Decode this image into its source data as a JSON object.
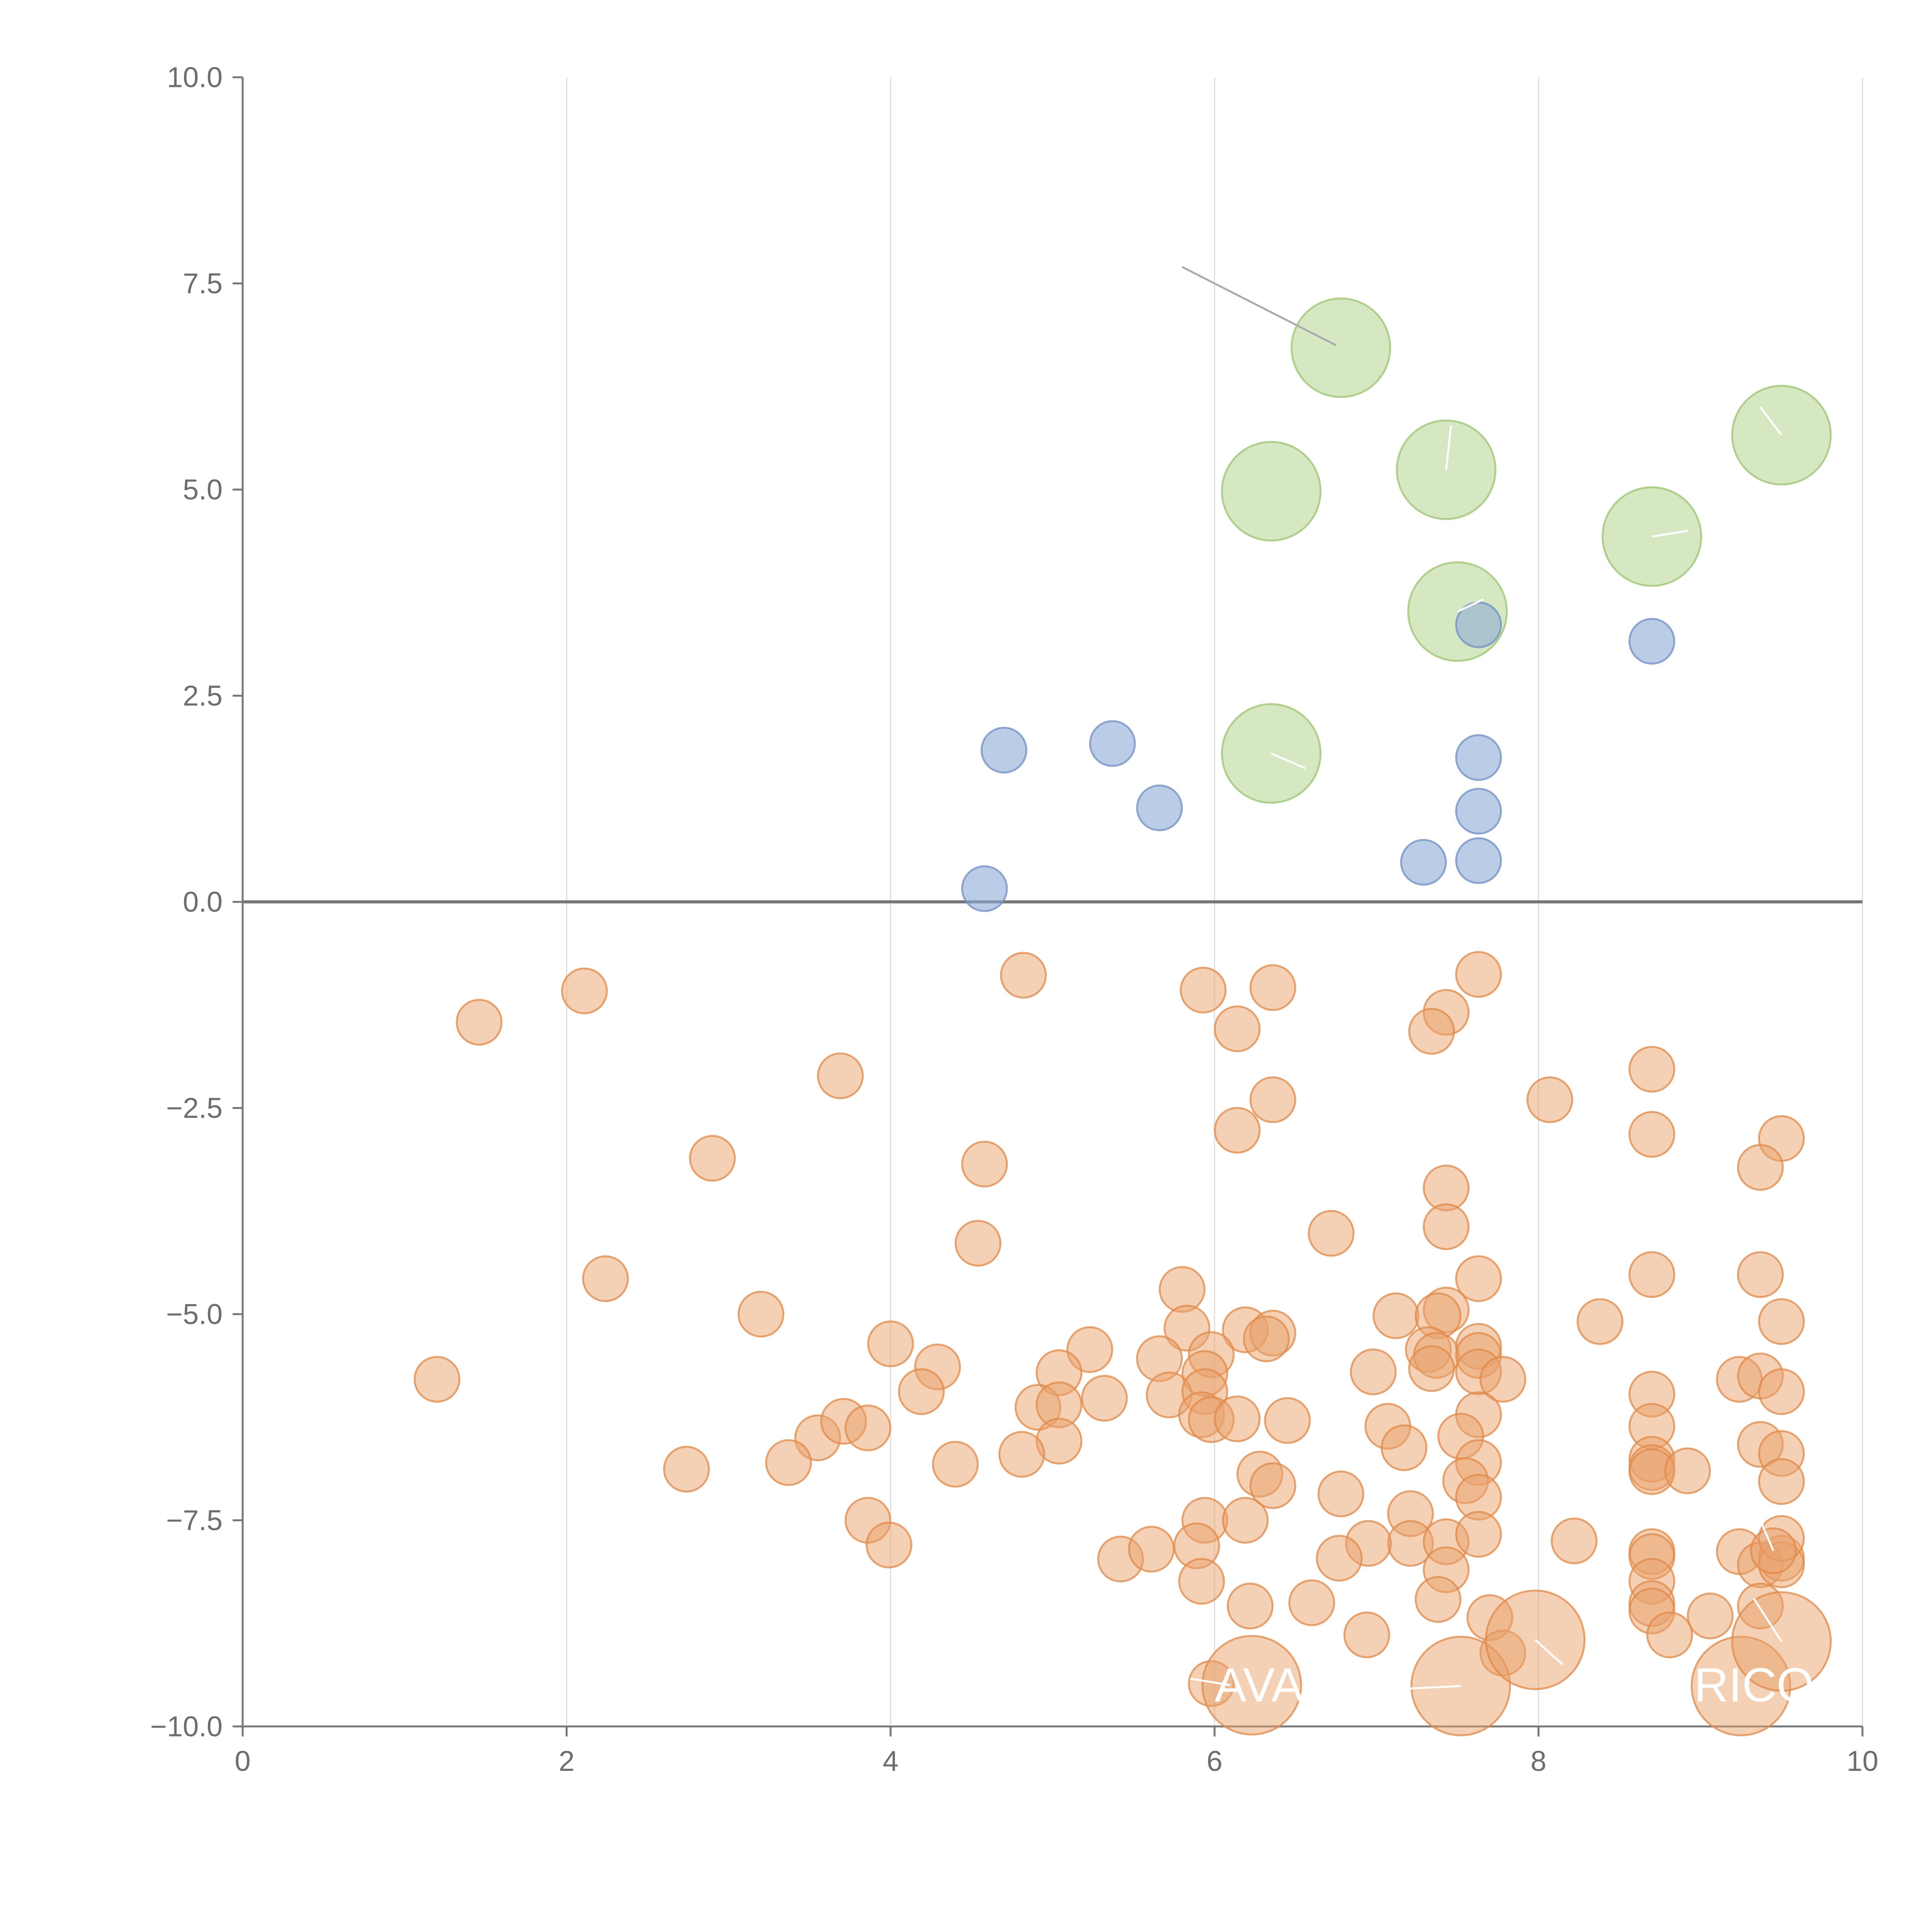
{
  "colors": {
    "axis": "#777777",
    "zero_line": "#777777",
    "grid": "#dddddd",
    "tick_text": "#6e6e6e",
    "leader_line": "#aaaaaa",
    "label_text": "#ffffff"
  },
  "chart_data": {
    "type": "scatter",
    "title": "",
    "xlabel": "",
    "ylabel": "",
    "xlim": [
      0,
      10
    ],
    "ylim": [
      -10,
      10
    ],
    "grid": {
      "x": true,
      "y": false
    },
    "zero_line": true,
    "x_ticks": [
      {
        "value": 0,
        "label": "0"
      },
      {
        "value": 2,
        "label": "2"
      },
      {
        "value": 4,
        "label": "4"
      },
      {
        "value": 6,
        "label": "6"
      },
      {
        "value": 8,
        "label": "8"
      },
      {
        "value": 10,
        "label": "10"
      }
    ],
    "y_ticks": [
      {
        "value": 10,
        "label": "10.0"
      },
      {
        "value": 7.5,
        "label": "7.5"
      },
      {
        "value": 5,
        "label": "5.0"
      },
      {
        "value": 2.5,
        "label": "2.5"
      },
      {
        "value": 0,
        "label": "0.0"
      },
      {
        "value": -2.5,
        "label": "−2.5"
      },
      {
        "value": -5,
        "label": "−5.0"
      },
      {
        "value": -7.5,
        "label": "−7.5"
      },
      {
        "value": -10,
        "label": "−10.0"
      }
    ],
    "series": [
      {
        "name": "green",
        "color": "#b5d58e",
        "stroke": "#9cc46d",
        "opacity": 0.55,
        "size": 2.2,
        "points": [
          [
            6.78,
            6.72
          ],
          [
            6.35,
            4.98
          ],
          [
            7.43,
            5.24
          ],
          [
            9.5,
            5.66
          ],
          [
            8.7,
            4.43
          ],
          [
            7.5,
            3.52
          ],
          [
            6.35,
            1.8
          ]
        ]
      },
      {
        "name": "blue",
        "color": "#8eabd6",
        "stroke": "#6f8fc4",
        "opacity": 0.6,
        "size": 1,
        "points": [
          [
            7.63,
            3.36
          ],
          [
            8.7,
            3.16
          ],
          [
            4.7,
            1.84
          ],
          [
            5.37,
            1.92
          ],
          [
            5.66,
            1.14
          ],
          [
            7.63,
            1.75
          ],
          [
            7.63,
            1.1
          ],
          [
            7.29,
            0.48
          ],
          [
            7.63,
            0.5
          ],
          [
            4.58,
            0.16
          ]
        ]
      },
      {
        "name": "orange",
        "color": "#e9a26b",
        "stroke": "#e08a47",
        "opacity": 0.5,
        "size": 1,
        "points": [
          [
            1.46,
            -1.46
          ],
          [
            2.11,
            -1.08
          ],
          [
            4.82,
            -0.89
          ],
          [
            5.93,
            -1.07
          ],
          [
            6.36,
            -1.04
          ],
          [
            7.63,
            -0.88
          ],
          [
            7.43,
            -1.34
          ],
          [
            7.34,
            -1.57
          ],
          [
            6.14,
            -1.54
          ],
          [
            3.69,
            -2.11
          ],
          [
            8.7,
            -2.03
          ],
          [
            6.36,
            -2.4
          ],
          [
            8.07,
            -2.4
          ],
          [
            6.14,
            -2.77
          ],
          [
            8.7,
            -2.82
          ],
          [
            9.5,
            -2.87
          ],
          [
            2.9,
            -3.11
          ],
          [
            4.58,
            -3.18
          ],
          [
            9.37,
            -3.22
          ],
          [
            7.43,
            -3.47
          ],
          [
            7.43,
            -3.94
          ],
          [
            6.72,
            -4.02
          ],
          [
            4.54,
            -4.14
          ],
          [
            2.24,
            -4.57
          ],
          [
            7.63,
            -4.57
          ],
          [
            8.7,
            -4.52
          ],
          [
            9.37,
            -4.52
          ],
          [
            5.8,
            -4.7
          ],
          [
            3.2,
            -5.0
          ],
          [
            7.12,
            -5.02
          ],
          [
            7.43,
            -4.95
          ],
          [
            7.38,
            -5.02
          ],
          [
            8.38,
            -5.09
          ],
          [
            9.5,
            -5.09
          ],
          [
            6.19,
            -5.19
          ],
          [
            6.36,
            -5.23
          ],
          [
            6.32,
            -5.3
          ],
          [
            5.83,
            -5.17
          ],
          [
            4.0,
            -5.36
          ],
          [
            5.23,
            -5.43
          ],
          [
            5.98,
            -5.49
          ],
          [
            7.32,
            -5.43
          ],
          [
            7.37,
            -5.5
          ],
          [
            7.63,
            -5.39
          ],
          [
            7.63,
            -5.5
          ],
          [
            1.2,
            -5.79
          ],
          [
            4.29,
            -5.64
          ],
          [
            5.04,
            -5.71
          ],
          [
            5.66,
            -5.54
          ],
          [
            5.94,
            -5.72
          ],
          [
            6.98,
            -5.7
          ],
          [
            7.34,
            -5.66
          ],
          [
            7.63,
            -5.7
          ],
          [
            7.78,
            -5.79
          ],
          [
            9.24,
            -5.79
          ],
          [
            9.37,
            -5.75
          ],
          [
            4.19,
            -5.94
          ],
          [
            5.72,
            -5.98
          ],
          [
            5.94,
            -5.94
          ],
          [
            8.7,
            -5.97
          ],
          [
            9.5,
            -5.94
          ],
          [
            4.91,
            -6.13
          ],
          [
            5.04,
            -6.1
          ],
          [
            5.32,
            -6.02
          ],
          [
            5.92,
            -6.22
          ],
          [
            5.98,
            -6.28
          ],
          [
            6.14,
            -6.27
          ],
          [
            6.45,
            -6.29
          ],
          [
            7.63,
            -6.22
          ],
          [
            3.55,
            -6.5
          ],
          [
            3.71,
            -6.3
          ],
          [
            3.86,
            -6.38
          ],
          [
            7.07,
            -6.36
          ],
          [
            7.52,
            -6.48
          ],
          [
            8.7,
            -6.36
          ],
          [
            9.37,
            -6.58
          ],
          [
            5.04,
            -6.54
          ],
          [
            7.17,
            -6.62
          ],
          [
            2.74,
            -6.88
          ],
          [
            3.37,
            -6.8
          ],
          [
            4.4,
            -6.82
          ],
          [
            4.81,
            -6.7
          ],
          [
            7.63,
            -6.8
          ],
          [
            8.7,
            -6.76
          ],
          [
            8.7,
            -6.86
          ],
          [
            8.7,
            -6.91
          ],
          [
            8.92,
            -6.9
          ],
          [
            9.5,
            -6.69
          ],
          [
            6.28,
            -6.94
          ],
          [
            6.36,
            -7.08
          ],
          [
            7.55,
            -7.02
          ],
          [
            9.5,
            -7.03
          ],
          [
            6.78,
            -7.18
          ],
          [
            7.63,
            -7.22
          ],
          [
            3.86,
            -7.5
          ],
          [
            5.94,
            -7.5
          ],
          [
            6.19,
            -7.5
          ],
          [
            7.21,
            -7.42
          ],
          [
            3.99,
            -7.8
          ],
          [
            5.89,
            -7.81
          ],
          [
            7.21,
            -7.78
          ],
          [
            7.43,
            -7.76
          ],
          [
            7.63,
            -7.67
          ],
          [
            8.22,
            -7.75
          ],
          [
            6.95,
            -7.78
          ],
          [
            5.42,
            -7.97
          ],
          [
            5.61,
            -7.85
          ],
          [
            6.77,
            -7.96
          ],
          [
            8.7,
            -7.88
          ],
          [
            8.7,
            -7.94
          ],
          [
            9.24,
            -7.88
          ],
          [
            9.37,
            -8.04
          ],
          [
            9.5,
            -7.96
          ],
          [
            9.5,
            -8.04
          ],
          [
            9.5,
            -7.72
          ],
          [
            9.45,
            -7.87
          ],
          [
            5.92,
            -8.24
          ],
          [
            7.43,
            -8.1
          ],
          [
            8.7,
            -8.24
          ],
          [
            7.38,
            -8.46
          ],
          [
            6.22,
            -8.54
          ],
          [
            6.6,
            -8.5
          ],
          [
            8.7,
            -8.51
          ],
          [
            8.7,
            -8.6
          ],
          [
            9.37,
            -8.54
          ],
          [
            9.06,
            -8.66
          ],
          [
            7.7,
            -8.68
          ],
          [
            6.94,
            -8.89
          ],
          [
            8.81,
            -8.89
          ],
          [
            7.78,
            -9.11
          ],
          [
            5.98,
            -9.48
          ]
        ]
      },
      {
        "name": "orange-large",
        "color": "#e9a26b",
        "stroke": "#e08a47",
        "opacity": 0.5,
        "size": 2.2,
        "points": [
          [
            6.23,
            -9.5
          ],
          [
            7.52,
            -9.51
          ],
          [
            7.98,
            -8.95
          ],
          [
            9.25,
            -9.51
          ],
          [
            9.5,
            -8.97
          ]
        ]
      }
    ],
    "leader_lines": [
      [
        5.8,
        7.7,
        6.75,
        6.75
      ],
      [
        7.43,
        5.24,
        7.46,
        5.78
      ],
      [
        9.5,
        5.66,
        9.37,
        6.0
      ],
      [
        8.7,
        4.43,
        8.92,
        4.5
      ],
      [
        7.5,
        3.52,
        7.66,
        3.67
      ],
      [
        6.35,
        1.8,
        6.56,
        1.62
      ],
      [
        5.85,
        -9.42,
        6.1,
        -9.5
      ],
      [
        7.52,
        -9.51,
        7.1,
        -9.55
      ],
      [
        7.98,
        -8.95,
        8.15,
        -9.25
      ],
      [
        9.5,
        -8.97,
        9.33,
        -8.45
      ],
      [
        9.45,
        -7.87,
        9.37,
        -7.5
      ]
    ],
    "point_labels": [
      {
        "text": "AVA",
        "x": 6.0,
        "y": -9.5,
        "anchor": "start"
      },
      {
        "text": "RICO",
        "x": 9.7,
        "y": -9.5,
        "anchor": "end"
      }
    ]
  }
}
